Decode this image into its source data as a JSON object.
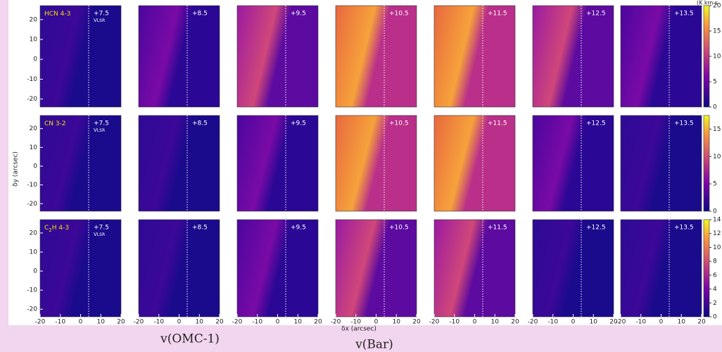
{
  "figure": {
    "colorbar_unit": "(K km s",
    "velocities": [
      "+7.5",
      "+8.5",
      "+9.5",
      "+10.5",
      "+11.5",
      "+12.5",
      "+13.5"
    ],
    "vlsr": {
      "main": "V",
      "sub": "LSR"
    },
    "xlim": [
      -20,
      20
    ],
    "ylim": [
      -24,
      27
    ],
    "xticks": [
      -20,
      -10,
      0,
      10,
      20
    ],
    "yticks": [
      -20,
      -10,
      0,
      10,
      20
    ],
    "xlabel": "δx (arcsec)",
    "ylabel": "δy (arcsec)",
    "rows": [
      {
        "molecule": {
          "pre": "HCN 4-3",
          "sub": "",
          "post": ""
        },
        "cbar_lim": [
          0,
          20
        ],
        "cbar_ticks": [
          0,
          5,
          10,
          15,
          20
        ]
      },
      {
        "molecule": {
          "pre": "CN 3-2",
          "sub": "",
          "post": ""
        },
        "cbar_lim": [
          0,
          17.5
        ],
        "cbar_ticks": [
          0,
          5,
          10,
          15
        ]
      },
      {
        "molecule": {
          "pre": "C",
          "sub": "2",
          "post": "H 4-3"
        },
        "cbar_lim": [
          0,
          14
        ],
        "cbar_ticks": [
          0,
          2,
          4,
          6,
          8,
          10,
          12,
          14
        ]
      }
    ],
    "bottom_labels": {
      "omc": "v(OMC-1)",
      "bar": "v(Bar)"
    }
  }
}
